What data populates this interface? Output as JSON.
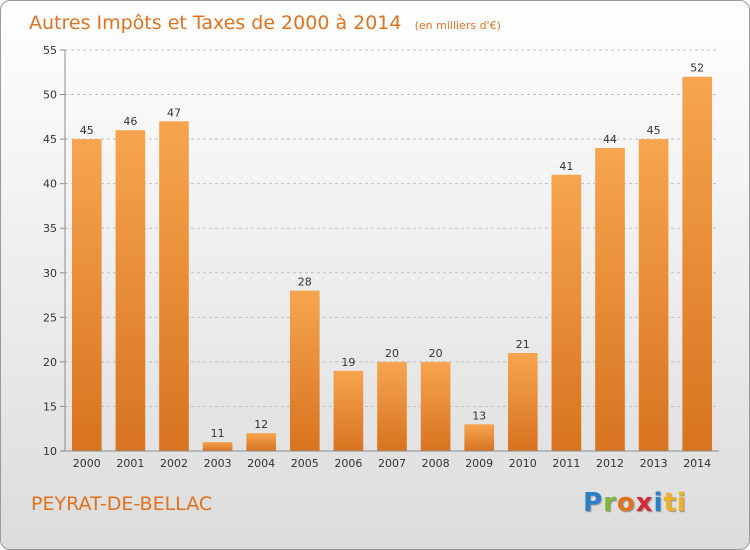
{
  "chart_data": {
    "type": "bar",
    "title": "Autres Impôts et Taxes de 2000 à 2014",
    "unit_label": "(en milliers d'€)",
    "categories": [
      "2000",
      "2001",
      "2002",
      "2003",
      "2004",
      "2005",
      "2006",
      "2007",
      "2008",
      "2009",
      "2010",
      "2011",
      "2012",
      "2013",
      "2014"
    ],
    "values": [
      45,
      46,
      47,
      11,
      12,
      28,
      19,
      20,
      20,
      13,
      21,
      41,
      44,
      45,
      52
    ],
    "ylim": [
      10,
      55
    ],
    "yticks": [
      10,
      15,
      20,
      25,
      30,
      35,
      40,
      45,
      50,
      55
    ],
    "grid": true,
    "bar_color_top": "#f7a54f",
    "bar_color_bottom": "#d8731f"
  },
  "commune": "PEYRAT-DE-BELLAC",
  "logo": {
    "letters": [
      "P",
      "r",
      "o",
      "x",
      "i",
      "ti"
    ]
  }
}
